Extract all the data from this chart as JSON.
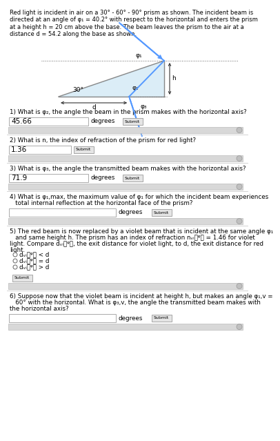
{
  "bg_color": "#ffffff",
  "desc": "Red light is incident in air on a 30° - 60° - 90° prism as shown. The incident beam is\ndirected at an angle of φ₁ = 40.2° with respect to the horizontal and enters the prism\nat a height h = 20 cm above the base. The beam leaves the prism to the air at a\ndistance d = 54.2 along the base as shown.",
  "q1_label": "1) What is φ₂, the angle the beam in the prism makes with the horizontal axis?",
  "q1_answer": "45.66",
  "q2_label": "2) What is n, the index of refraction of the prism for red light?",
  "q2_answer": "1.36",
  "q3_label": "3) What is φ₃, the angle the transmitted beam makes with the horizontal axis?",
  "q3_answer": "71.9",
  "q4_label1": "4) What is φ₁,max, the maximum value of φ₁ for which the incident beam experiences",
  "q4_label2": "   total internal reflection at the horizontal face of the prism?",
  "q5_label1": "5) The red beam is now replaced by a violet beam that is incident at the same angle φ₁",
  "q5_label2": "   and same height h. The prism has an index of refraction nᵥᵢᵯᵠᵯ = 1.46 for violet",
  "q5_label3": "light. Compare dᵥᵢᵯᵠᵯ, the exit distance for violet light, to d, the exit distance for red",
  "q5_label4": "light.",
  "q5_opt1": "dᵥᵢᵯᵠᵯ < d",
  "q5_opt2": "dᵥᵢᵯᵠᵯ = d",
  "q5_opt3": "dᵥᵢᵯᵠᵯ > d",
  "q6_label1": "6) Suppose now that the violet beam is incident at height h, but makes an angle φ₁,v =",
  "q6_label2": "   60° with the horizontal. What is φ₃,v, the angle the transmitted beam makes with",
  "q6_label3": "the horizontal axis?",
  "prism_fill": "#d0e8f5",
  "beam_color": "#5599ff",
  "edge_color": "#888888",
  "dot_color": "#666666",
  "arrow_color": "#333333",
  "box_bg": "#ffffff",
  "box_edge": "#aaaaaa",
  "bar_bg": "#d8d8d8",
  "btn_bg": "#e5e5e5",
  "btn_edge": "#999999",
  "sep_color": "#cccccc",
  "text_color": "#000000"
}
